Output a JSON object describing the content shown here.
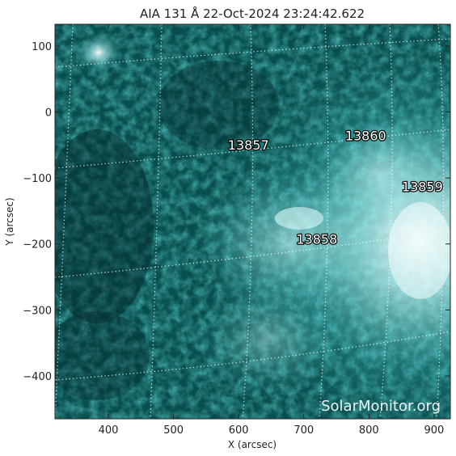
{
  "title": "AIA 131 Å 22-Oct-2024 23:24:42.622",
  "xlabel": "X (arcsec)",
  "ylabel": "Y (arcsec)",
  "x_ticks": [
    "400",
    "500",
    "600",
    "700",
    "800",
    "900"
  ],
  "y_ticks": [
    "100",
    "0",
    "−100",
    "−200",
    "−300",
    "−400"
  ],
  "x_range": [
    318,
    925
  ],
  "y_range": [
    -465,
    133
  ],
  "x_tick_values": [
    400,
    500,
    600,
    700,
    800,
    900
  ],
  "y_tick_values": [
    100,
    0,
    -100,
    -200,
    -300,
    -400
  ],
  "regions": [
    {
      "label": "13857",
      "x": 615,
      "y": -57
    },
    {
      "label": "13860",
      "x": 795,
      "y": -43
    },
    {
      "label": "13859",
      "x": 882,
      "y": -120
    },
    {
      "label": "13858",
      "x": 720,
      "y": -200
    }
  ],
  "watermark": "SolarMonitor.org",
  "colors": {
    "image_base": "#0b4a4a",
    "image_dark": "#052828",
    "image_bright": "#bff8f8",
    "frame": "#222222"
  }
}
